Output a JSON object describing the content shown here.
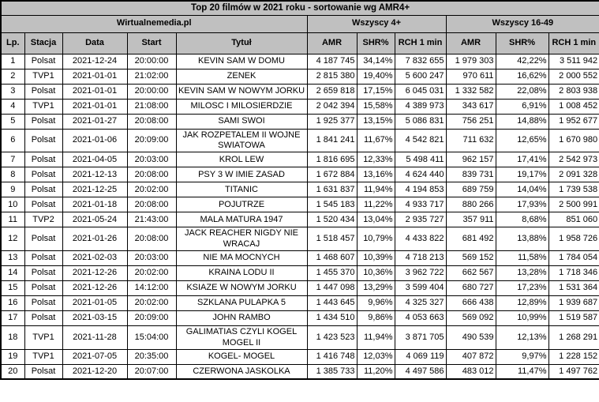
{
  "colors": {
    "header_bg": "#c0c0c0",
    "border": "#000000",
    "row_bg": "#ffffff",
    "text": "#000000"
  },
  "chart_data": {
    "type": "table",
    "title": "Top 20 filmów w 2021 roku - sortowanie wg AMR4+",
    "source_label": "Wirtualnemedia.pl",
    "column_groups": [
      {
        "label": "Wszyscy 4+",
        "span": 3
      },
      {
        "label": "Wszyscy 16-49",
        "span": 3
      }
    ],
    "columns": [
      "Lp.",
      "Stacja",
      "Data",
      "Start",
      "Tytuł",
      "AMR",
      "SHR%",
      "RCH 1 min",
      "AMR",
      "SHR%",
      "RCH 1 min"
    ],
    "rows": [
      [
        "1",
        "Polsat",
        "2021-12-24",
        "20:00:00",
        "KEVIN SAM W DOMU",
        "4 187 745",
        "34,14%",
        "7 832 655",
        "1 979 303",
        "42,22%",
        "3 511 942"
      ],
      [
        "2",
        "TVP1",
        "2021-01-01",
        "21:02:00",
        "ZENEK",
        "2 815 380",
        "19,40%",
        "5 600 247",
        "970 611",
        "16,62%",
        "2 000 552"
      ],
      [
        "3",
        "Polsat",
        "2021-01-01",
        "20:00:00",
        "KEVIN SAM W NOWYM JORKU",
        "2 659 818",
        "17,15%",
        "6 045 031",
        "1 332 582",
        "22,08%",
        "2 803 938"
      ],
      [
        "4",
        "TVP1",
        "2021-01-01",
        "21:08:00",
        "MILOSC I MILOSIERDZIE",
        "2 042 394",
        "15,58%",
        "4 389 973",
        "343 617",
        "6,91%",
        "1 008 452"
      ],
      [
        "5",
        "Polsat",
        "2021-01-27",
        "20:08:00",
        "SAMI SWOI",
        "1 925 377",
        "13,15%",
        "5 086 831",
        "756 251",
        "14,88%",
        "1 952 677"
      ],
      [
        "6",
        "Polsat",
        "2021-01-06",
        "20:09:00",
        "JAK ROZPETALEM II WOJNE SWIATOWA",
        "1 841 241",
        "11,67%",
        "4 542 821",
        "711 632",
        "12,65%",
        "1 670 980"
      ],
      [
        "7",
        "Polsat",
        "2021-04-05",
        "20:03:00",
        "KROL LEW",
        "1 816 695",
        "12,33%",
        "5 498 411",
        "962 157",
        "17,41%",
        "2 542 973"
      ],
      [
        "8",
        "Polsat",
        "2021-12-13",
        "20:08:00",
        "PSY 3 W IMIE ZASAD",
        "1 672 884",
        "13,16%",
        "4 624 440",
        "839 731",
        "19,17%",
        "2 091 328"
      ],
      [
        "9",
        "Polsat",
        "2021-12-25",
        "20:02:00",
        "TITANIC",
        "1 631 837",
        "11,94%",
        "4 194 853",
        "689 759",
        "14,04%",
        "1 739 538"
      ],
      [
        "10",
        "Polsat",
        "2021-01-18",
        "20:08:00",
        "POJUTRZE",
        "1 545 183",
        "11,22%",
        "4 933 717",
        "880 266",
        "17,93%",
        "2 500 991"
      ],
      [
        "11",
        "TVP2",
        "2021-05-24",
        "21:43:00",
        "MALA MATURA 1947",
        "1 520 434",
        "13,04%",
        "2 935 727",
        "357 911",
        "8,68%",
        "851 060"
      ],
      [
        "12",
        "Polsat",
        "2021-01-26",
        "20:08:00",
        "JACK REACHER NIGDY NIE WRACAJ",
        "1 518 457",
        "10,79%",
        "4 433 822",
        "681 492",
        "13,88%",
        "1 958 726"
      ],
      [
        "13",
        "Polsat",
        "2021-02-03",
        "20:03:00",
        "NIE MA MOCNYCH",
        "1 468 607",
        "10,39%",
        "4 718 213",
        "569 152",
        "11,58%",
        "1 784 054"
      ],
      [
        "14",
        "Polsat",
        "2021-12-26",
        "20:02:00",
        "KRAINA LODU II",
        "1 455 370",
        "10,36%",
        "3 962 722",
        "662 567",
        "13,28%",
        "1 718 346"
      ],
      [
        "15",
        "Polsat",
        "2021-12-26",
        "14:12:00",
        "KSIAZE W NOWYM JORKU",
        "1 447 098",
        "13,29%",
        "3 599 404",
        "680 727",
        "17,23%",
        "1 531 364"
      ],
      [
        "16",
        "Polsat",
        "2021-01-05",
        "20:02:00",
        "SZKLANA PULAPKA 5",
        "1 443 645",
        "9,96%",
        "4 325 327",
        "666 438",
        "12,89%",
        "1 939 687"
      ],
      [
        "17",
        "Polsat",
        "2021-03-15",
        "20:09:00",
        "JOHN RAMBO",
        "1 434 510",
        "9,86%",
        "4 053 663",
        "569 092",
        "10,99%",
        "1 519 587"
      ],
      [
        "18",
        "TVP1",
        "2021-11-28",
        "15:04:00",
        "GALIMATIAS CZYLI KOGEL MOGEL II",
        "1 423 523",
        "11,94%",
        "3 871 705",
        "490 539",
        "12,13%",
        "1 268 291"
      ],
      [
        "19",
        "TVP1",
        "2021-07-05",
        "20:35:00",
        "KOGEL- MOGEL",
        "1 416 748",
        "12,03%",
        "4 069 119",
        "407 872",
        "9,97%",
        "1 228 152"
      ],
      [
        "20",
        "Polsat",
        "2021-12-20",
        "20:07:00",
        "CZERWONA JASKOLKA",
        "1 385 733",
        "11,20%",
        "4 497 586",
        "483 012",
        "11,47%",
        "1 497 762"
      ]
    ]
  }
}
